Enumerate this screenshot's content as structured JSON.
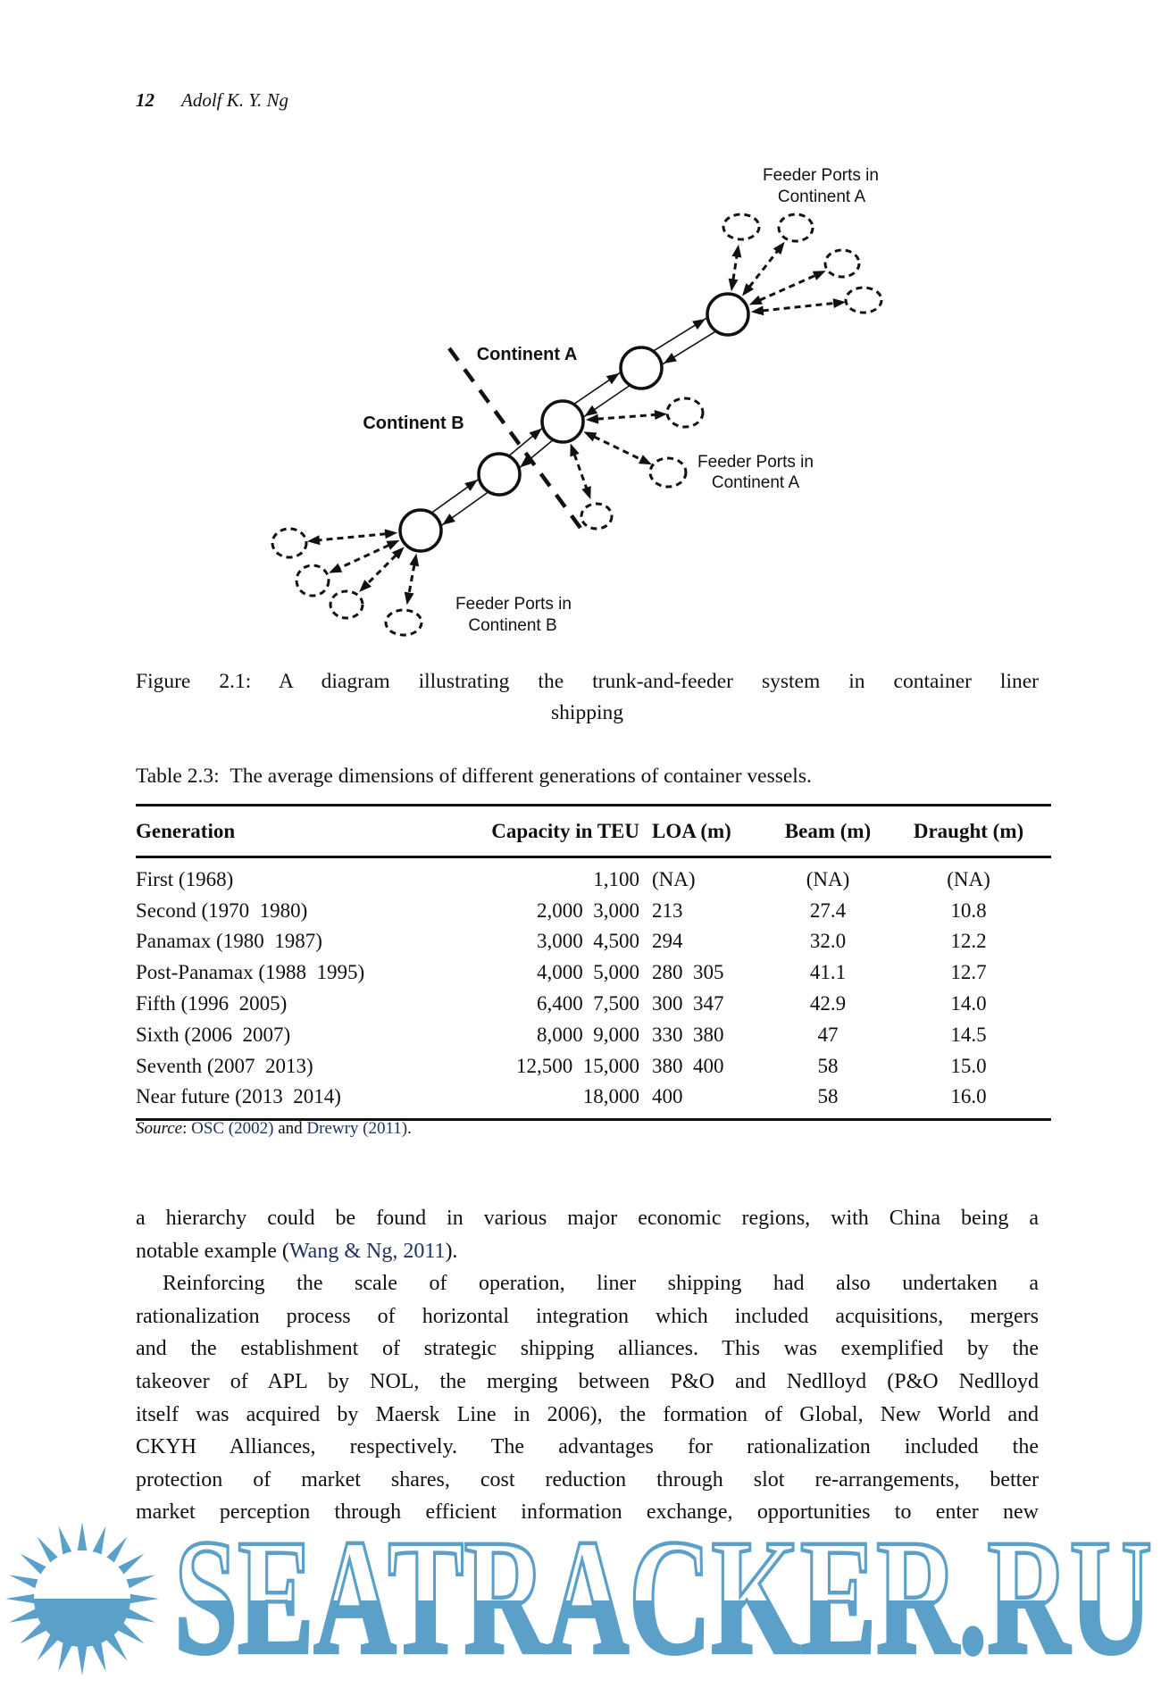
{
  "header": {
    "page_number": "12",
    "author": "Adolf K. Y. Ng"
  },
  "figure": {
    "caption_line1": "Figure 2.1: A diagram illustrating the trunk-and-feeder system in container liner",
    "caption_line2": "shipping",
    "labels": {
      "feeder_a_top_1": "Feeder Ports in",
      "feeder_a_top_2": "Continent A",
      "continent_a": "Continent A",
      "continent_b": "Continent B",
      "feeder_a_mid_1": "Feeder Ports in",
      "feeder_a_mid_2": "Continent A",
      "feeder_b_1": "Feeder Ports in",
      "feeder_b_2": "Continent B"
    }
  },
  "table": {
    "caption": "Table 2.3: The average dimensions of different generations of container vessels.",
    "columns": [
      "Generation",
      "Capacity in TEU",
      "LOA (m)",
      "Beam (m)",
      "Draught (m)"
    ],
    "rows": [
      [
        "First (1968)",
        "1,100",
        "(NA)",
        "(NA)",
        "(NA)"
      ],
      [
        "Second (1970 1980)",
        "2,000 3,000",
        "213",
        "27.4",
        "10.8"
      ],
      [
        "Panamax (1980 1987)",
        "3,000 4,500",
        "294",
        "32.0",
        "12.2"
      ],
      [
        "Post-Panamax (1988 1995)",
        "4,000 5,000",
        "280 305",
        "41.1",
        "12.7"
      ],
      [
        "Fifth (1996 2005)",
        "6,400 7,500",
        "300 347",
        "42.9",
        "14.0"
      ],
      [
        "Sixth (2006 2007)",
        "8,000 9,000",
        "330 380",
        "47",
        "14.5"
      ],
      [
        "Seventh (2007 2013)",
        "12,500 15,000",
        "380 400",
        "58",
        "15.0"
      ],
      [
        "Near future (2013 2014)",
        "18,000",
        "400",
        "58",
        "16.0"
      ]
    ],
    "source_segments": [
      {
        "t": "Source",
        "style": "i"
      },
      {
        "t": ": ",
        "style": "p"
      },
      {
        "t": "OSC (2002)",
        "style": "link"
      },
      {
        "t": " and ",
        "style": "p"
      },
      {
        "t": "Drewry (2011)",
        "style": "link"
      },
      {
        "t": ".",
        "style": "p"
      }
    ]
  },
  "body": {
    "paragraphs": [
      {
        "indent": false,
        "justify_last": false,
        "lines": [
          [
            {
              "t": "a hierarchy could be found in various major economic regions, with China being a"
            }
          ],
          [
            {
              "t": "notable example ("
            },
            {
              "t": "Wang & Ng, 2011",
              "link": true
            },
            {
              "t": ")."
            }
          ]
        ]
      },
      {
        "indent": true,
        "justify_last": true,
        "lines": [
          [
            {
              "t": "Reinforcing the scale of operation, liner shipping had also undertaken a"
            }
          ],
          [
            {
              "t": "rationalization process of horizontal integration which included acquisitions, mergers"
            }
          ],
          [
            {
              "t": "and the establishment of strategic shipping alliances. This was exemplified by the"
            }
          ],
          [
            {
              "t": "takeover of APL by NOL, the merging between P&O and Nedlloyd (P&O Nedlloyd"
            }
          ],
          [
            {
              "t": "itself was acquired by Maersk Line in 2006), the formation of Global, New World and"
            }
          ],
          [
            {
              "t": "CKYH Alliances, respectively. The advantages for rationalization included the"
            }
          ],
          [
            {
              "t": "protection of market shares, cost reduction through slot re-arrangements, better"
            }
          ],
          [
            {
              "t": "market perception through efficient information exchange, opportunities to enter new"
            }
          ]
        ]
      }
    ]
  },
  "watermark": {
    "text": "SEATRACKER.RU",
    "color": "#5ba0c9"
  },
  "colors": {
    "link": "#203261",
    "ink": "#111111"
  }
}
